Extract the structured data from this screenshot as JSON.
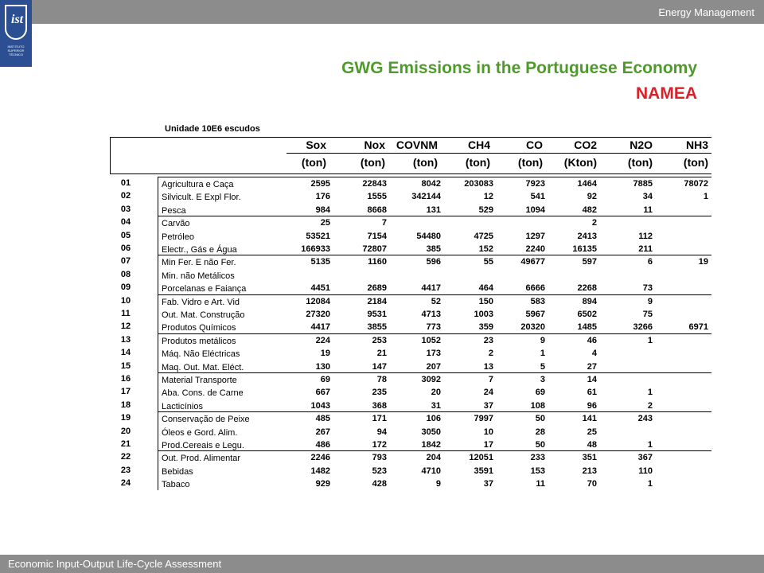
{
  "header": {
    "course": "Energy Management"
  },
  "logo": {
    "caption": "INSTITUTO SUPERIOR TÉCNICO",
    "mark": "ist"
  },
  "title": {
    "line1": "GWG Emissions in the Portuguese Economy",
    "line2": "NAMEA"
  },
  "table": {
    "unit_label": "Unidade 10E6 escudos",
    "columns": [
      {
        "name": "Sox",
        "unit": "(ton)"
      },
      {
        "name": "Nox",
        "unit": "(ton)"
      },
      {
        "name": "COVNM",
        "unit": "(ton)"
      },
      {
        "name": "CH4",
        "unit": "(ton)"
      },
      {
        "name": "CO",
        "unit": "(ton)"
      },
      {
        "name": "CO2",
        "unit": "(Kton)"
      },
      {
        "name": "N2O",
        "unit": "(ton)"
      },
      {
        "name": "NH3",
        "unit": "(ton)"
      }
    ],
    "rows": [
      {
        "code": "01",
        "sector": "Agricultura e Caça",
        "values": [
          "2595",
          "22843",
          "8042",
          "203083",
          "7923",
          "1464",
          "7885",
          "78072"
        ]
      },
      {
        "code": "02",
        "sector": "Silvicult. E Expl Flor.",
        "values": [
          "176",
          "1555",
          "342144",
          "12",
          "541",
          "92",
          "34",
          "1"
        ]
      },
      {
        "code": "03",
        "sector": "Pesca",
        "values": [
          "984",
          "8668",
          "131",
          "529",
          "1094",
          "482",
          "11",
          ""
        ]
      },
      {
        "code": "04",
        "sector": "Carvão",
        "values": [
          "25",
          "7",
          "",
          "",
          "",
          "2",
          "",
          ""
        ]
      },
      {
        "code": "05",
        "sector": "Petróleo",
        "values": [
          "53521",
          "7154",
          "54480",
          "4725",
          "1297",
          "2413",
          "112",
          ""
        ]
      },
      {
        "code": "06",
        "sector": "Electr., Gás e Água",
        "values": [
          "166933",
          "72807",
          "385",
          "152",
          "2240",
          "16135",
          "211",
          ""
        ]
      },
      {
        "code": "07",
        "sector": "Min Fer. E não Fer.",
        "values": [
          "5135",
          "1160",
          "596",
          "55",
          "49677",
          "597",
          "6",
          "19"
        ]
      },
      {
        "code": "08",
        "sector": "Min. não Metálicos",
        "values": [
          "",
          "",
          "",
          "",
          "",
          "",
          "",
          ""
        ]
      },
      {
        "code": "09",
        "sector": "Porcelanas e Faiança",
        "values": [
          "4451",
          "2689",
          "4417",
          "464",
          "6666",
          "2268",
          "73",
          ""
        ]
      },
      {
        "code": "10",
        "sector": "Fab. Vidro e Art. Vid",
        "values": [
          "12084",
          "2184",
          "52",
          "150",
          "583",
          "894",
          "9",
          ""
        ]
      },
      {
        "code": "11",
        "sector": "Out. Mat. Construção",
        "values": [
          "27320",
          "9531",
          "4713",
          "1003",
          "5967",
          "6502",
          "75",
          ""
        ]
      },
      {
        "code": "12",
        "sector": "Produtos Químicos",
        "values": [
          "4417",
          "3855",
          "773",
          "359",
          "20320",
          "1485",
          "3266",
          "6971"
        ]
      },
      {
        "code": "13",
        "sector": "Produtos metálicos",
        "values": [
          "224",
          "253",
          "1052",
          "23",
          "9",
          "46",
          "1",
          ""
        ]
      },
      {
        "code": "14",
        "sector": "Máq. Não Eléctricas",
        "values": [
          "19",
          "21",
          "173",
          "2",
          "1",
          "4",
          "",
          ""
        ]
      },
      {
        "code": "15",
        "sector": "Maq. Out. Mat. Eléct.",
        "values": [
          "130",
          "147",
          "207",
          "13",
          "5",
          "27",
          "",
          ""
        ]
      },
      {
        "code": "16",
        "sector": "Material Transporte",
        "values": [
          "69",
          "78",
          "3092",
          "7",
          "3",
          "14",
          "",
          ""
        ]
      },
      {
        "code": "17",
        "sector": "Aba. Cons. de Carne",
        "values": [
          "667",
          "235",
          "20",
          "24",
          "69",
          "61",
          "1",
          ""
        ]
      },
      {
        "code": "18",
        "sector": "Lacticínios",
        "values": [
          "1043",
          "368",
          "31",
          "37",
          "108",
          "96",
          "2",
          ""
        ]
      },
      {
        "code": "19",
        "sector": "Conservação de Peixe",
        "values": [
          "485",
          "171",
          "106",
          "7997",
          "50",
          "141",
          "243",
          ""
        ]
      },
      {
        "code": "20",
        "sector": "Óleos e Gord. Alim.",
        "values": [
          "267",
          "94",
          "3050",
          "10",
          "28",
          "25",
          "",
          ""
        ]
      },
      {
        "code": "21",
        "sector": "Prod.Cereais e Legu.",
        "values": [
          "486",
          "172",
          "1842",
          "17",
          "50",
          "48",
          "1",
          ""
        ]
      },
      {
        "code": "22",
        "sector": "Out. Prod. Alimentar",
        "values": [
          "2246",
          "793",
          "204",
          "12051",
          "233",
          "351",
          "367",
          ""
        ]
      },
      {
        "code": "23",
        "sector": "Bebidas",
        "values": [
          "1482",
          "523",
          "4710",
          "3591",
          "153",
          "213",
          "110",
          ""
        ]
      },
      {
        "code": "24",
        "sector": "Tabaco",
        "values": [
          "929",
          "428",
          "9",
          "37",
          "11",
          "70",
          "1",
          ""
        ]
      }
    ]
  },
  "footer": {
    "text": "Economic Input-Output Life-Cycle Assessment"
  }
}
